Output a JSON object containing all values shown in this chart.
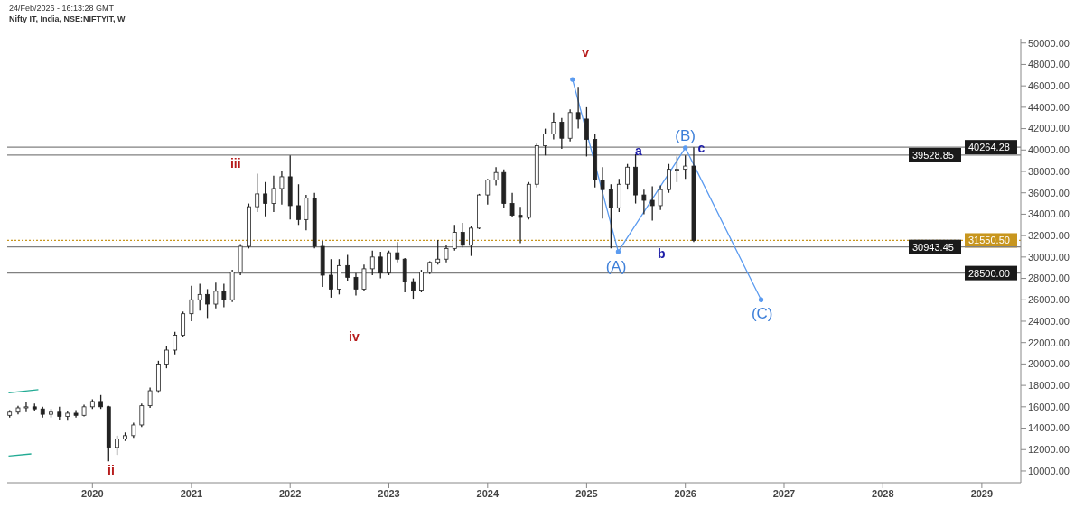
{
  "chart_data": {
    "type": "candlestick",
    "title": "Nifty IT, India, NSE:NIFTYIT, W",
    "annotations": [
      "24/Feb/2026 - 16:13:28 GMT",
      "v",
      "iii",
      "ii",
      "iv",
      "a",
      "b",
      "c",
      "(A)",
      "(B)",
      "(C)"
    ],
    "color": "#222222",
    "x": [
      "2019-03",
      "2019-04",
      "2019-05",
      "2019-06",
      "2019-07",
      "2019-08",
      "2019-09",
      "2019-10",
      "2019-11",
      "2019-12",
      "2020-01",
      "2020-02",
      "2020-03",
      "2020-04",
      "2020-05",
      "2020-06",
      "2020-07",
      "2020-08",
      "2020-09",
      "2020-10",
      "2020-11",
      "2020-12",
      "2021-01",
      "2021-02",
      "2021-03",
      "2021-04",
      "2021-05",
      "2021-06",
      "2021-07",
      "2021-08",
      "2021-09",
      "2021-10",
      "2021-11",
      "2021-12",
      "2022-01",
      "2022-02",
      "2022-03",
      "2022-04",
      "2022-05",
      "2022-06",
      "2022-07",
      "2022-08",
      "2022-09",
      "2022-10",
      "2022-11",
      "2022-12",
      "2023-01",
      "2023-02",
      "2023-03",
      "2023-04",
      "2023-05",
      "2023-06",
      "2023-07",
      "2023-08",
      "2023-09",
      "2023-10",
      "2023-11",
      "2023-12",
      "2024-01",
      "2024-02",
      "2024-03",
      "2024-04",
      "2024-05",
      "2024-06",
      "2024-07",
      "2024-08",
      "2024-09",
      "2024-10",
      "2024-11",
      "2024-12",
      "2025-01",
      "2025-02",
      "2025-03",
      "2025-04",
      "2025-05",
      "2025-06",
      "2025-07",
      "2025-08",
      "2025-09",
      "2025-10",
      "2025-11",
      "2025-12",
      "2026-01",
      "2026-02"
    ],
    "ohlc": [
      [
        15200,
        15700,
        15000,
        15500
      ],
      [
        15500,
        16100,
        15300,
        15900
      ],
      [
        15900,
        16400,
        15500,
        16000
      ],
      [
        16000,
        16300,
        15600,
        15800
      ],
      [
        15800,
        16000,
        15000,
        15300
      ],
      [
        15300,
        15800,
        15000,
        15500
      ],
      [
        15500,
        16000,
        14800,
        15100
      ],
      [
        15100,
        15600,
        14700,
        15400
      ],
      [
        15400,
        15700,
        15000,
        15200
      ],
      [
        15200,
        16200,
        15100,
        16000
      ],
      [
        16000,
        16700,
        15800,
        16500
      ],
      [
        16500,
        17100,
        15800,
        16000
      ],
      [
        16000,
        16100,
        10900,
        12200
      ],
      [
        12200,
        13300,
        11500,
        13000
      ],
      [
        13000,
        13600,
        12800,
        13300
      ],
      [
        13300,
        14500,
        13100,
        14300
      ],
      [
        14300,
        16300,
        14100,
        16100
      ],
      [
        16100,
        17800,
        15900,
        17500
      ],
      [
        17500,
        20300,
        17300,
        20000
      ],
      [
        20000,
        21700,
        19600,
        21300
      ],
      [
        21300,
        23000,
        20900,
        22700
      ],
      [
        22700,
        24900,
        22500,
        24700
      ],
      [
        24700,
        27300,
        24000,
        26000
      ],
      [
        26000,
        27500,
        25000,
        26500
      ],
      [
        26500,
        27000,
        24300,
        25600
      ],
      [
        25600,
        27600,
        25200,
        26800
      ],
      [
        26800,
        27500,
        25300,
        26000
      ],
      [
        26000,
        28800,
        25800,
        28600
      ],
      [
        28600,
        31200,
        28300,
        31000
      ],
      [
        31000,
        35000,
        30800,
        34700
      ],
      [
        34700,
        37800,
        34200,
        35900
      ],
      [
        35900,
        37000,
        33800,
        35000
      ],
      [
        35000,
        37600,
        34200,
        36400
      ],
      [
        36400,
        38000,
        34900,
        37500
      ],
      [
        37500,
        39500,
        33500,
        34800
      ],
      [
        34800,
        36800,
        33000,
        33500
      ],
      [
        33500,
        35800,
        32500,
        35500
      ],
      [
        35500,
        36000,
        30800,
        31000
      ],
      [
        31000,
        31500,
        27200,
        28300
      ],
      [
        28300,
        29800,
        26200,
        27000
      ],
      [
        27000,
        29800,
        26500,
        29200
      ],
      [
        29200,
        30200,
        27800,
        28100
      ],
      [
        28100,
        28500,
        26400,
        27000
      ],
      [
        27000,
        29300,
        26800,
        28900
      ],
      [
        28900,
        30600,
        28300,
        30000
      ],
      [
        30000,
        30500,
        28000,
        28500
      ],
      [
        28500,
        30600,
        28300,
        30400
      ],
      [
        30400,
        31400,
        29500,
        29800
      ],
      [
        29800,
        29900,
        26700,
        27700
      ],
      [
        27700,
        28000,
        26100,
        26900
      ],
      [
        26900,
        28800,
        26700,
        28600
      ],
      [
        28600,
        29600,
        28400,
        29500
      ],
      [
        29500,
        31600,
        29300,
        29800
      ],
      [
        29800,
        31100,
        29500,
        30800
      ],
      [
        30800,
        33000,
        30600,
        32300
      ],
      [
        32300,
        33200,
        30900,
        31100
      ],
      [
        31100,
        32900,
        30100,
        32700
      ],
      [
        32700,
        35900,
        32600,
        35800
      ],
      [
        35800,
        37300,
        34900,
        37200
      ],
      [
        37200,
        38400,
        36700,
        37900
      ],
      [
        37900,
        38200,
        34600,
        35000
      ],
      [
        35000,
        36000,
        33700,
        33900
      ],
      [
        33900,
        34700,
        31300,
        33700
      ],
      [
        33700,
        37000,
        33500,
        36800
      ],
      [
        36800,
        40600,
        36500,
        40400
      ],
      [
        40400,
        42000,
        39500,
        41500
      ],
      [
        41500,
        43500,
        41000,
        42600
      ],
      [
        42600,
        43000,
        40100,
        41100
      ],
      [
        41100,
        43800,
        40800,
        43500
      ],
      [
        43500,
        45900,
        42000,
        42900
      ],
      [
        42900,
        44000,
        39400,
        41000
      ],
      [
        41000,
        41500,
        36500,
        37200
      ],
      [
        37200,
        38400,
        33600,
        36300
      ],
      [
        36300,
        36800,
        30800,
        34600
      ],
      [
        34600,
        37300,
        34200,
        36800
      ],
      [
        36800,
        38700,
        36300,
        38400
      ],
      [
        38400,
        39600,
        35000,
        35800
      ],
      [
        35800,
        36300,
        34000,
        35300
      ],
      [
        35300,
        36600,
        33400,
        34800
      ],
      [
        34800,
        36700,
        34400,
        36300
      ],
      [
        36300,
        38700,
        36000,
        38200
      ],
      [
        38200,
        39400,
        37000,
        38200
      ],
      [
        38200,
        39500,
        37300,
        38500
      ],
      [
        38500,
        40260,
        31400,
        31550
      ]
    ],
    "series": [
      {
        "type": "line",
        "color": "#5b9bf0",
        "marker": "circle",
        "x": [
          "2024-11-10",
          "2025-04-28",
          "2026-01-01",
          "2026-10-08"
        ],
        "values": [
          46600,
          30500,
          40200,
          26000
        ]
      },
      {
        "type": "line",
        "color": "#22ab94",
        "x": [
          "2019-02-25",
          "2019-06-15"
        ],
        "values": [
          17300,
          17600
        ]
      },
      {
        "type": "line",
        "color": "#22ab94",
        "x": [
          "2019-02-25",
          "2019-05-20"
        ],
        "values": [
          11400,
          11600
        ]
      }
    ],
    "ref_lines": [
      {
        "axis": "y",
        "value": 40264.28,
        "label": "40264.28",
        "color": "#808080"
      },
      {
        "axis": "y",
        "value": 39528.85,
        "label": "39528.85",
        "color": "#808080"
      },
      {
        "axis": "y",
        "value": 31550.5,
        "label": "31550.50",
        "color": "#c8961e",
        "line_style": "dotted"
      },
      {
        "axis": "y",
        "value": 30943.45,
        "label": "30943.45",
        "color": "#808080"
      },
      {
        "axis": "y",
        "value": 28500,
        "label": "28500.00",
        "color": "#808080"
      }
    ],
    "xlim": [
      "2019-02-20",
      "2029-05-25"
    ],
    "xticks": [
      "2020",
      "2021",
      "2022",
      "2023",
      "2024",
      "2025",
      "2026",
      "2027",
      "2028",
      "2029"
    ],
    "ylim": [
      8900,
      50400
    ],
    "yticks": [
      {
        "value": 10000,
        "label": "10000.00"
      },
      {
        "value": 12000,
        "label": "12000.00"
      },
      {
        "value": 14000,
        "label": "14000.00"
      },
      {
        "value": 16000,
        "label": "16000.00"
      },
      {
        "value": 18000,
        "label": "18000.00"
      },
      {
        "value": 20000,
        "label": "20000.00"
      },
      {
        "value": 22000,
        "label": "22000.00"
      },
      {
        "value": 24000,
        "label": "24000.00"
      },
      {
        "value": 26000,
        "label": "26000.00"
      },
      {
        "value": 28000,
        "label": "28000.00"
      },
      {
        "value": 30000,
        "label": "30000.00"
      },
      {
        "value": 32000,
        "label": "32000.00"
      },
      {
        "value": 34000,
        "label": "34000.00"
      },
      {
        "value": 36000,
        "label": "36000.00"
      },
      {
        "value": 38000,
        "label": "38000.00"
      },
      {
        "value": 40000,
        "label": "40000.00"
      },
      {
        "value": 42000,
        "label": "42000.00"
      },
      {
        "value": 44000,
        "label": "44000.00"
      },
      {
        "value": 46000,
        "label": "46000.00"
      },
      {
        "value": 48000,
        "label": "48000.00"
      },
      {
        "value": 50000,
        "label": "50000.00"
      }
    ],
    "line_style": "solid"
  }
}
